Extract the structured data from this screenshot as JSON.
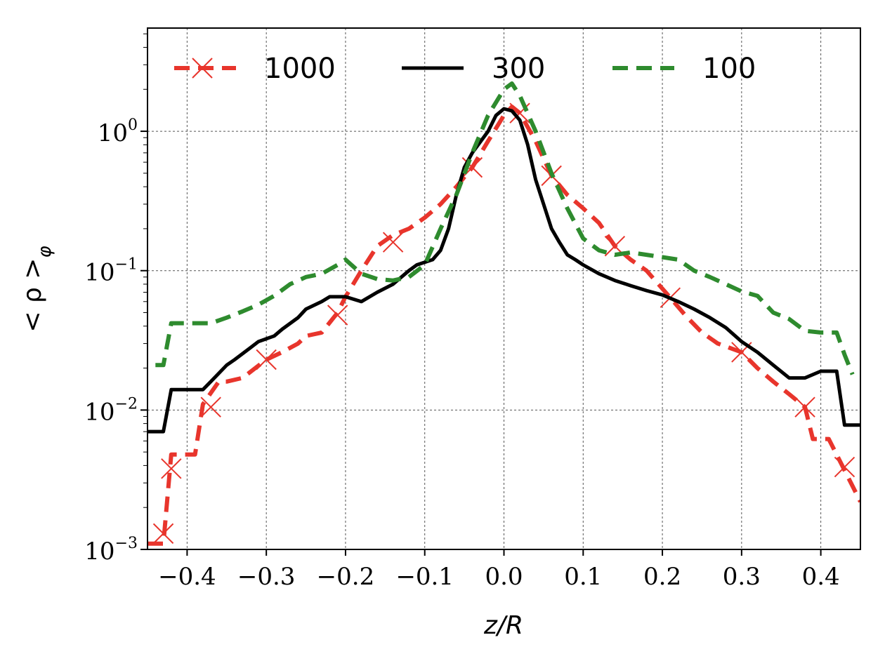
{
  "chart_data": {
    "type": "line",
    "xlabel": "z/R",
    "ylabel": "< ρ > φ",
    "ylabel_main": "< ρ >",
    "ylabel_sub": "φ",
    "xlim": [
      -0.45,
      0.45
    ],
    "ylim": [
      0.001,
      5.5
    ],
    "yscale": "log",
    "grid": true,
    "legend_position": "top",
    "x_ticks": [
      -0.4,
      -0.3,
      -0.2,
      -0.1,
      0.0,
      0.1,
      0.2,
      0.3,
      0.4
    ],
    "x_tick_labels": [
      "−0.4",
      "−0.3",
      "−0.2",
      "−0.1",
      "0.0",
      "0.1",
      "0.2",
      "0.3",
      "0.4"
    ],
    "y_ticks": [
      0.001,
      0.01,
      0.1,
      1
    ],
    "y_tick_labels": [
      {
        "base": "10",
        "exp": "−3"
      },
      {
        "base": "10",
        "exp": "−2"
      },
      {
        "base": "10",
        "exp": "−1"
      },
      {
        "base": "10",
        "exp": "0"
      }
    ],
    "series": [
      {
        "name": "1000",
        "color": "#e8352c",
        "style": "dashed",
        "marker": "x",
        "x": [
          -0.45,
          -0.43,
          -0.42,
          -0.41,
          -0.39,
          -0.38,
          -0.36,
          -0.35,
          -0.33,
          -0.3,
          -0.28,
          -0.26,
          -0.25,
          -0.23,
          -0.21,
          -0.2,
          -0.18,
          -0.16,
          -0.14,
          -0.12,
          -0.1,
          -0.08,
          -0.06,
          -0.04,
          -0.02,
          0.0,
          0.01,
          0.02,
          0.04,
          0.06,
          0.08,
          0.1,
          0.12,
          0.14,
          0.16,
          0.18,
          0.21,
          0.23,
          0.25,
          0.27,
          0.3,
          0.32,
          0.34,
          0.36,
          0.38,
          0.39,
          0.41,
          0.43,
          0.45
        ],
        "y": [
          0.0011,
          0.0011,
          0.0048,
          0.0048,
          0.0048,
          0.011,
          0.016,
          0.016,
          0.017,
          0.023,
          0.026,
          0.03,
          0.034,
          0.036,
          0.05,
          0.065,
          0.1,
          0.15,
          0.18,
          0.2,
          0.24,
          0.3,
          0.4,
          0.55,
          0.85,
          1.3,
          1.5,
          1.35,
          0.85,
          0.48,
          0.35,
          0.28,
          0.22,
          0.15,
          0.12,
          0.1,
          0.064,
          0.047,
          0.036,
          0.03,
          0.026,
          0.02,
          0.016,
          0.013,
          0.0105,
          0.0062,
          0.0062,
          0.0037,
          0.0022
        ],
        "markers_x": [
          -0.43,
          -0.42,
          -0.37,
          -0.3,
          -0.21,
          -0.14,
          -0.04,
          0.02,
          0.06,
          0.14,
          0.21,
          0.3,
          0.38,
          0.43
        ],
        "markers_y": [
          0.0013,
          0.0038,
          0.0105,
          0.023,
          0.048,
          0.16,
          0.55,
          1.35,
          0.48,
          0.15,
          0.064,
          0.026,
          0.0105,
          0.0039
        ]
      },
      {
        "name": "300",
        "color": "#000000",
        "style": "solid",
        "x": [
          -0.45,
          -0.43,
          -0.42,
          -0.4,
          -0.38,
          -0.37,
          -0.35,
          -0.34,
          -0.32,
          -0.31,
          -0.29,
          -0.28,
          -0.26,
          -0.25,
          -0.23,
          -0.22,
          -0.2,
          -0.18,
          -0.16,
          -0.14,
          -0.12,
          -0.11,
          -0.09,
          -0.08,
          -0.07,
          -0.06,
          -0.05,
          -0.04,
          -0.02,
          -0.01,
          0.0,
          0.01,
          0.02,
          0.03,
          0.04,
          0.05,
          0.06,
          0.07,
          0.08,
          0.09,
          0.1,
          0.12,
          0.14,
          0.16,
          0.18,
          0.2,
          0.22,
          0.24,
          0.26,
          0.28,
          0.3,
          0.32,
          0.34,
          0.36,
          0.38,
          0.4,
          0.42,
          0.43,
          0.45
        ],
        "y": [
          0.007,
          0.007,
          0.014,
          0.014,
          0.014,
          0.016,
          0.021,
          0.023,
          0.028,
          0.031,
          0.034,
          0.038,
          0.046,
          0.053,
          0.06,
          0.065,
          0.065,
          0.06,
          0.07,
          0.08,
          0.1,
          0.11,
          0.12,
          0.14,
          0.2,
          0.35,
          0.55,
          0.7,
          1.0,
          1.3,
          1.45,
          1.4,
          1.2,
          0.8,
          0.45,
          0.3,
          0.2,
          0.16,
          0.13,
          0.12,
          0.11,
          0.095,
          0.085,
          0.078,
          0.072,
          0.067,
          0.06,
          0.053,
          0.046,
          0.039,
          0.031,
          0.026,
          0.021,
          0.017,
          0.017,
          0.019,
          0.019,
          0.0078,
          0.0078
        ]
      },
      {
        "name": "100",
        "color": "#2e8b2e",
        "style": "dashed",
        "x": [
          -0.44,
          -0.43,
          -0.42,
          -0.4,
          -0.37,
          -0.35,
          -0.33,
          -0.31,
          -0.29,
          -0.27,
          -0.25,
          -0.23,
          -0.21,
          -0.2,
          -0.18,
          -0.16,
          -0.14,
          -0.12,
          -0.1,
          -0.08,
          -0.06,
          -0.04,
          -0.02,
          0.0,
          0.01,
          0.02,
          0.04,
          0.06,
          0.08,
          0.1,
          0.12,
          0.14,
          0.16,
          0.18,
          0.2,
          0.22,
          0.24,
          0.26,
          0.28,
          0.3,
          0.32,
          0.34,
          0.36,
          0.38,
          0.4,
          0.42,
          0.43,
          0.44
        ],
        "y": [
          0.021,
          0.021,
          0.042,
          0.042,
          0.042,
          0.046,
          0.051,
          0.057,
          0.066,
          0.08,
          0.09,
          0.095,
          0.11,
          0.12,
          0.095,
          0.087,
          0.085,
          0.09,
          0.11,
          0.2,
          0.35,
          0.7,
          1.3,
          2.0,
          2.2,
          1.8,
          1.0,
          0.5,
          0.28,
          0.17,
          0.14,
          0.13,
          0.135,
          0.13,
          0.125,
          0.12,
          0.1,
          0.09,
          0.08,
          0.071,
          0.066,
          0.05,
          0.045,
          0.037,
          0.036,
          0.036,
          0.025,
          0.018
        ]
      }
    ]
  }
}
